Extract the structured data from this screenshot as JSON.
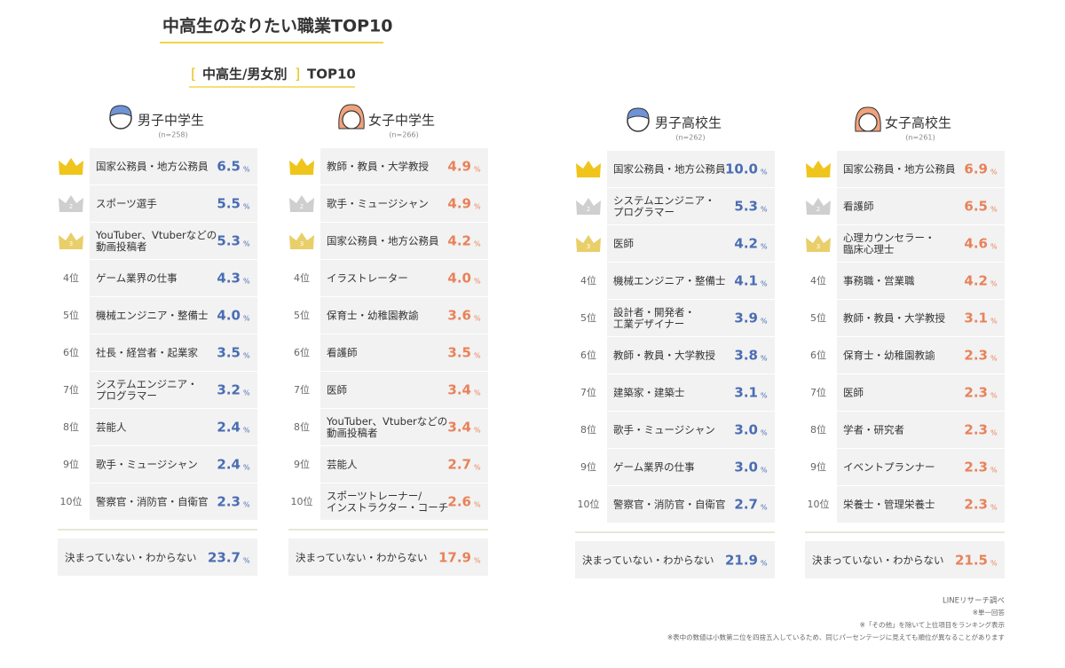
{
  "title": "中高生のなりたい職業TOP10",
  "subtitle": {
    "bracket_open": "[",
    "label": "中高生/男女別",
    "bracket_close": "]",
    "suffix": "TOP10"
  },
  "unit": "%",
  "ranks": [
    "2",
    "3",
    "4位",
    "5位",
    "6位",
    "7位",
    "8位",
    "9位",
    "10位"
  ],
  "groups": [
    {
      "label": "男子中学生",
      "n": "(n=258)",
      "gender": "boy",
      "color": "#4a6db3",
      "rows": [
        {
          "job": [
            "国家公務員・地方公務員"
          ],
          "value": "6.5"
        },
        {
          "job": [
            "スポーツ選手"
          ],
          "value": "5.5"
        },
        {
          "job": [
            "YouTuber、Vtuberなどの",
            "動画投稿者"
          ],
          "value": "5.3"
        },
        {
          "job": [
            "ゲーム業界の仕事"
          ],
          "value": "4.3"
        },
        {
          "job": [
            "機械エンジニア・整備士"
          ],
          "value": "4.0"
        },
        {
          "job": [
            "社長・経営者・起業家"
          ],
          "value": "3.5"
        },
        {
          "job": [
            "システムエンジニア・",
            "プログラマー"
          ],
          "value": "3.2"
        },
        {
          "job": [
            "芸能人"
          ],
          "value": "2.4"
        },
        {
          "job": [
            "歌手・ミュージシャン"
          ],
          "value": "2.4"
        },
        {
          "job": [
            "警察官・消防官・自衛官"
          ],
          "value": "2.3"
        }
      ],
      "undecided": {
        "label": "決まっていない・わからない",
        "value": "23.7"
      }
    },
    {
      "label": "女子中学生",
      "n": "(n=266)",
      "gender": "girl",
      "color": "#e8825a",
      "rows": [
        {
          "job": [
            "教師・教員・大学教授"
          ],
          "value": "4.9"
        },
        {
          "job": [
            "歌手・ミュージシャン"
          ],
          "value": "4.9"
        },
        {
          "job": [
            "国家公務員・地方公務員"
          ],
          "value": "4.2"
        },
        {
          "job": [
            "イラストレーター"
          ],
          "value": "4.0"
        },
        {
          "job": [
            "保育士・幼稚園教諭"
          ],
          "value": "3.6"
        },
        {
          "job": [
            "看護師"
          ],
          "value": "3.5"
        },
        {
          "job": [
            "医師"
          ],
          "value": "3.4"
        },
        {
          "job": [
            "YouTuber、Vtuberなどの",
            "動画投稿者"
          ],
          "value": "3.4"
        },
        {
          "job": [
            "芸能人"
          ],
          "value": "2.7"
        },
        {
          "job": [
            "スポーツトレーナー/",
            "インストラクター・コーチ"
          ],
          "value": "2.6"
        }
      ],
      "undecided": {
        "label": "決まっていない・わからない",
        "value": "17.9"
      }
    },
    {
      "label": "男子高校生",
      "n": "(n=262)",
      "gender": "boy",
      "color": "#4a6db3",
      "rows": [
        {
          "job": [
            "国家公務員・地方公務員"
          ],
          "value": "10.0"
        },
        {
          "job": [
            "システムエンジニア・",
            "プログラマー"
          ],
          "value": "5.3"
        },
        {
          "job": [
            "医師"
          ],
          "value": "4.2"
        },
        {
          "job": [
            "機械エンジニア・整備士"
          ],
          "value": "4.1"
        },
        {
          "job": [
            "設計者・開発者・",
            "工業デザイナー"
          ],
          "value": "3.9"
        },
        {
          "job": [
            "教師・教員・大学教授"
          ],
          "value": "3.8"
        },
        {
          "job": [
            "建築家・建築士"
          ],
          "value": "3.1"
        },
        {
          "job": [
            "歌手・ミュージシャン"
          ],
          "value": "3.0"
        },
        {
          "job": [
            "ゲーム業界の仕事"
          ],
          "value": "3.0"
        },
        {
          "job": [
            "警察官・消防官・自衛官"
          ],
          "value": "2.7"
        }
      ],
      "undecided": {
        "label": "決まっていない・わからない",
        "value": "21.9"
      }
    },
    {
      "label": "女子高校生",
      "n": "(n=261)",
      "gender": "girl",
      "color": "#e8825a",
      "rows": [
        {
          "job": [
            "国家公務員・地方公務員"
          ],
          "value": "6.9"
        },
        {
          "job": [
            "看護師"
          ],
          "value": "6.5"
        },
        {
          "job": [
            "心理カウンセラー・",
            "臨床心理士"
          ],
          "value": "4.6"
        },
        {
          "job": [
            "事務職・営業職"
          ],
          "value": "4.2"
        },
        {
          "job": [
            "教師・教員・大学教授"
          ],
          "value": "3.1"
        },
        {
          "job": [
            "保育士・幼稚園教諭"
          ],
          "value": "2.3"
        },
        {
          "job": [
            "医師"
          ],
          "value": "2.3"
        },
        {
          "job": [
            "学者・研究者"
          ],
          "value": "2.3"
        },
        {
          "job": [
            "イベントプランナー"
          ],
          "value": "2.3"
        },
        {
          "job": [
            "栄養士・管理栄養士"
          ],
          "value": "2.3"
        }
      ],
      "undecided": {
        "label": "決まっていない・わからない",
        "value": "21.5"
      }
    }
  ],
  "notes": [
    "LINEリサーチ調べ",
    "※単一回答",
    "※「その他」を除いて上位項目をランキング表示",
    "※表中の数値は小数第二位を四捨五入しているため、同じパーセンテージに見えても順位が異なることがあります"
  ]
}
